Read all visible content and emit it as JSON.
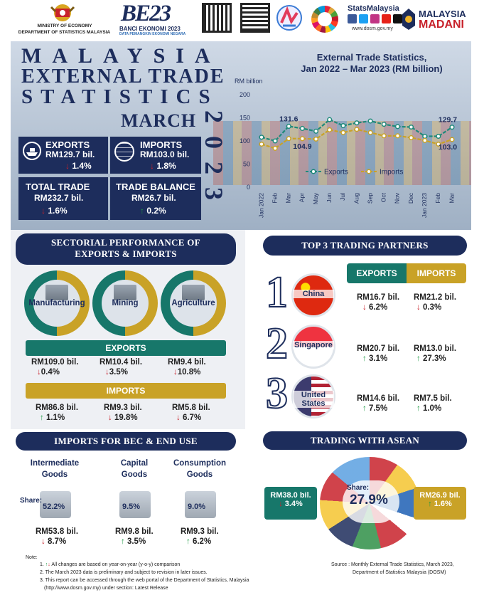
{
  "header": {
    "ministry": "MINISTRY OF ECONOMY",
    "dept": "DEPARTMENT OF STATISTICS MALAYSIA",
    "banci_title": "BANCI EKONOMI 2023",
    "banci_sub": "DATA PEMANGKIN EKONOMI NEGARA",
    "banci_logo": "BE23",
    "stats_brand": "StatsMalaysia",
    "stats_url": "www.dosm.gov.my",
    "madani_1": "MALAYSIA",
    "madani_2": "MADANI"
  },
  "title": {
    "line1": "MALAYSIA",
    "line2": "EXTERNAL TRADE",
    "line3": "STATISTICS",
    "month": "MARCH",
    "year": "2023"
  },
  "summary": {
    "exports_label": "EXPORTS",
    "exports_value": "RM129.7 bil.",
    "exports_change": "1.4%",
    "imports_label": "IMPORTS",
    "imports_value": "RM103.0 bil.",
    "imports_change": "1.8%",
    "total_label": "TOTAL TRADE",
    "total_value": "RM232.7 bil.",
    "total_change": "1.6%",
    "balance_label": "TRADE BALANCE",
    "balance_value": "RM26.7 bil.",
    "balance_change": "0.2%"
  },
  "chart_data": {
    "type": "line",
    "title": "External Trade Statistics,",
    "subtitle": "Jan 2022 – Mar 2023 (RM billion)",
    "ylabel": "RM billion",
    "ylim": [
      0,
      200
    ],
    "yticks": [
      0,
      50,
      100,
      150,
      200
    ],
    "categories": [
      "Jan 2022",
      "Feb",
      "Mar",
      "Apr",
      "May",
      "Jun",
      "Jul",
      "Aug",
      "Sep",
      "Oct",
      "Nov",
      "Dec",
      "Jan 2023",
      "Feb",
      "Mar"
    ],
    "series": [
      {
        "name": "Exports",
        "color": "#1f8a7a",
        "values": [
          108,
          100,
          131.6,
          127,
          121,
          146,
          133,
          139,
          143,
          136,
          131,
          130,
          110,
          110,
          129.7
        ]
      },
      {
        "name": "Imports",
        "color": "#c9a227",
        "values": [
          93,
          84,
          105,
          104.9,
          104,
          124,
          118,
          125,
          118,
          111,
          111,
          107,
          101,
          93,
          103.0
        ]
      }
    ],
    "labels": [
      {
        "text": "131.6"
      },
      {
        "text": "104.9"
      },
      {
        "text": "129.7"
      },
      {
        "text": "103.0"
      }
    ],
    "legend": "bottom"
  },
  "sectorial": {
    "title_1": "SECTORIAL PERFORMANCE OF",
    "title_2": "EXPORTS & IMPORTS",
    "sectors": [
      {
        "name": "Manufacturing",
        "exp_value": "RM109.0 bil.",
        "exp_change": "0.4%",
        "exp_dir": "down",
        "imp_value": "RM86.8 bil.",
        "imp_change": "1.1%",
        "imp_dir": "up"
      },
      {
        "name": "Mining",
        "exp_value": "RM10.4 bil.",
        "exp_change": "3.5%",
        "exp_dir": "down",
        "imp_value": "RM9.3 bil.",
        "imp_change": "19.8%",
        "imp_dir": "down"
      },
      {
        "name": "Agriculture",
        "exp_value": "RM9.4 bil.",
        "exp_change": "10.8%",
        "exp_dir": "down",
        "imp_value": "RM5.8 bil.",
        "imp_change": "6.7%",
        "imp_dir": "down"
      }
    ],
    "exports_label": "EXPORTS",
    "imports_label": "IMPORTS"
  },
  "partners": {
    "title": "TOP 3 TRADING PARTNERS",
    "exports_label": "EXPORTS",
    "imports_label": "IMPORTS",
    "items": [
      {
        "rank": "1",
        "name": "China",
        "exp_value": "RM16.7 bil.",
        "exp_change": "6.2%",
        "exp_dir": "down",
        "imp_value": "RM21.2 bil.",
        "imp_change": "0.3%",
        "imp_dir": "down"
      },
      {
        "rank": "2",
        "name": "Singapore",
        "exp_value": "RM20.7 bil.",
        "exp_change": "3.1%",
        "exp_dir": "up",
        "imp_value": "RM13.0 bil.",
        "imp_change": "27.3%",
        "imp_dir": "up"
      },
      {
        "rank": "3",
        "name": "United States",
        "exp_value": "RM14.6 bil.",
        "exp_change": "7.5%",
        "exp_dir": "up",
        "imp_value": "RM7.5 bil.",
        "imp_change": "1.0%",
        "imp_dir": "up"
      }
    ]
  },
  "bec": {
    "title": "IMPORTS FOR BEC & END USE",
    "share_label": "Share:",
    "items": [
      {
        "name_1": "Intermediate",
        "name_2": "Goods",
        "share": "52.2%",
        "value": "RM53.8 bil.",
        "change": "8.7%",
        "dir": "down"
      },
      {
        "name_1": "Capital",
        "name_2": "Goods",
        "share": "9.5%",
        "value": "RM9.8 bil.",
        "change": "3.5%",
        "dir": "up"
      },
      {
        "name_1": "Consumption",
        "name_2": "Goods",
        "share": "9.0%",
        "value": "RM9.3 bil.",
        "change": "6.2%",
        "dir": "up"
      }
    ]
  },
  "asean": {
    "title": "TRADING WITH ASEAN",
    "share_label": "Share:",
    "share": "27.9%",
    "exports_value": "RM38.0 bil.",
    "exports_change": "3.4%",
    "imports_value": "RM26.9 bil.",
    "imports_change": "1.6%"
  },
  "notes": {
    "heading": "Note:",
    "n1": "All changes are based on year-on-year (y-o-y) comparison",
    "n2": "2. The March 2023 data is preliminary and subject to revision in later issues.",
    "n3": "3. This report can be accessed through the web portal of the Department of Statistics, Malaysia",
    "n3b": "(http://www.dosm.gov.my) under section: Latest Release",
    "source_1": "Source : Monthly External Trade Statistics, March 2023,",
    "source_2": "Department of Statistics Malaysia (DOSM)"
  }
}
